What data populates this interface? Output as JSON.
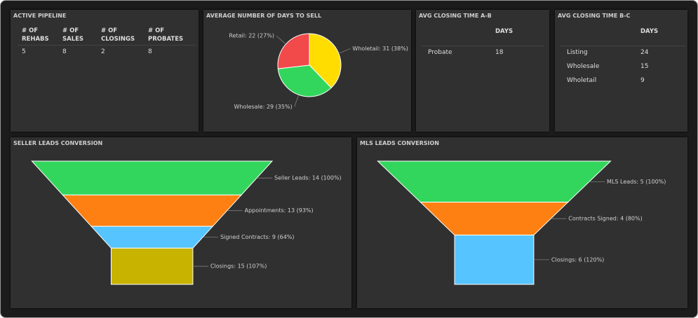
{
  "active_pipeline": {
    "title": "ACTIVE PIPELINE",
    "columns": [
      "# OF REHABS",
      "# OF SALES",
      "# OF CLOSINGS",
      "# OF PROBATES"
    ],
    "values": [
      5,
      8,
      2,
      8
    ]
  },
  "closing_a_b": {
    "title": "AVG CLOSING TIME A-B",
    "column": "DAYS",
    "rows": [
      {
        "label": "Probate",
        "days": 18
      }
    ]
  },
  "closing_b_c": {
    "title": "AVG CLOSING TIME B-C",
    "column": "DAYS",
    "rows": [
      {
        "label": "Listing",
        "days": 24
      },
      {
        "label": "Wholesale",
        "days": 15
      },
      {
        "label": "Wholetail",
        "days": 9
      }
    ]
  },
  "chart_data": [
    {
      "type": "pie",
      "title": "AVERAGE NUMBER OF DAYS TO SELL",
      "categories": [
        "Wholetail",
        "Wholesale",
        "Retail"
      ],
      "values": [
        31,
        29,
        22
      ],
      "value_labels": [
        "Wholetail: 31 (38%)",
        "Wholesale: 29 (35%)",
        "Retail: 22 (27%)"
      ],
      "colors": [
        "#ffdd00",
        "#33d65c",
        "#f24a4a"
      ]
    },
    {
      "type": "funnel",
      "title": "SELLER LEADS CONVERSION",
      "categories": [
        "Seller Leads",
        "Appointments",
        "Signed Contracts",
        "Closings"
      ],
      "values": [
        14,
        13,
        9,
        15
      ],
      "value_labels": [
        "Seller Leads: 14 (100%)",
        "Appointments: 13 (93%)",
        "Signed Contracts: 9 (64%)",
        "Closings: 15 (107%)"
      ],
      "colors": [
        "#33d65c",
        "#ff8012",
        "#55c4ff",
        "#c8b400"
      ]
    },
    {
      "type": "funnel",
      "title": "MLS LEADS CONVERSION",
      "categories": [
        "MLS Leads",
        "Contracts Signed",
        "Closings"
      ],
      "values": [
        5,
        4,
        6
      ],
      "value_labels": [
        "MLS Leads: 5 (100%)",
        "Contracts Signed: 4 (80%)",
        "Closings: 6 (120%)"
      ],
      "colors": [
        "#33d65c",
        "#ff8012",
        "#55c4ff"
      ]
    }
  ]
}
